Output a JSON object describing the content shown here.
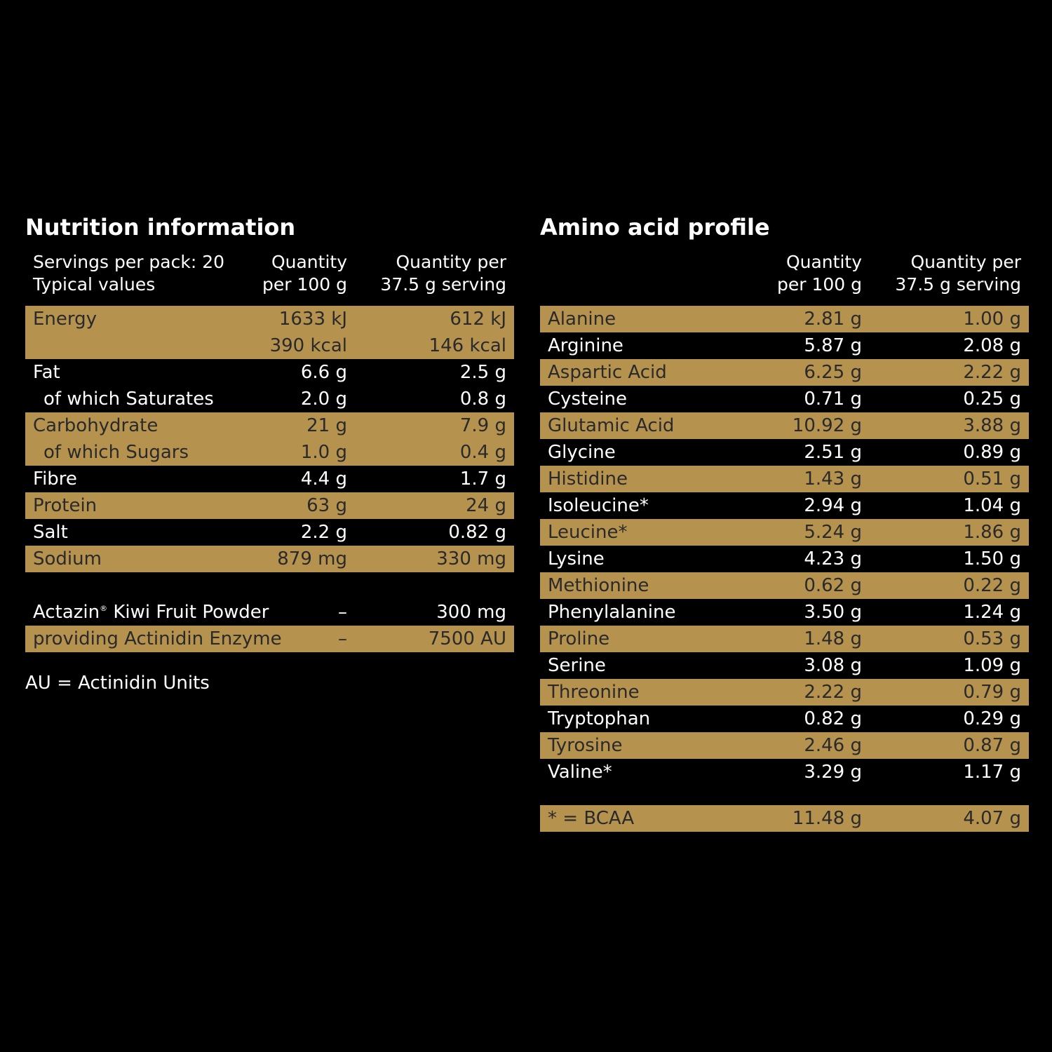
{
  "nutrition": {
    "title": "Nutrition information",
    "header": {
      "col1_line1": "Servings per pack: 20",
      "col1_line2": "Typical values",
      "col2_line1": "Quantity",
      "col2_line2": "per 100 g",
      "col3_line1": "Quantity per",
      "col3_line2": "37.5 g serving"
    },
    "energy": {
      "label": "Energy",
      "per100_kj": "1633 kJ",
      "per100_kcal": "390 kcal",
      "serving_kj": "612 kJ",
      "serving_kcal": "146 kcal"
    },
    "rows": [
      {
        "label": "Fat",
        "per100": "6.6 g",
        "serving": "2.5 g"
      },
      {
        "label": "of which Saturates",
        "per100": "2.0 g",
        "serving": "0.8 g"
      },
      {
        "label": "Carbohydrate",
        "per100": "21 g",
        "serving": "7.9 g"
      },
      {
        "label": "of which Sugars",
        "per100": "1.0 g",
        "serving": "0.4 g"
      },
      {
        "label": "Fibre",
        "per100": "4.4 g",
        "serving": "1.7 g"
      },
      {
        "label": "Protein",
        "per100": "63 g",
        "serving": "24 g"
      },
      {
        "label": "Salt",
        "per100": "2.2 g",
        "serving": "0.82 g"
      },
      {
        "label": "Sodium",
        "per100": "879 mg",
        "serving": "330 mg"
      }
    ],
    "extras": [
      {
        "label": "Actazin",
        "mark": "®",
        "label_rest": " Kiwi Fruit Powder",
        "per100": "–",
        "serving": "300 mg"
      },
      {
        "label": "providing Actinidin Enzyme",
        "per100": "–",
        "serving": "7500 AU"
      }
    ],
    "footnote": "AU = Actinidin Units"
  },
  "amino": {
    "title": "Amino acid profile",
    "header": {
      "col2_line1": "Quantity",
      "col2_line2": "per 100 g",
      "col3_line1": "Quantity per",
      "col3_line2": "37.5 g serving"
    },
    "rows": [
      {
        "label": "Alanine",
        "per100": "2.81 g",
        "serving": "1.00 g"
      },
      {
        "label": "Arginine",
        "per100": "5.87 g",
        "serving": "2.08 g"
      },
      {
        "label": "Aspartic Acid",
        "per100": "6.25 g",
        "serving": "2.22 g"
      },
      {
        "label": "Cysteine",
        "per100": "0.71 g",
        "serving": "0.25 g"
      },
      {
        "label": "Glutamic Acid",
        "per100": "10.92 g",
        "serving": "3.88 g"
      },
      {
        "label": "Glycine",
        "per100": "2.51 g",
        "serving": "0.89 g"
      },
      {
        "label": "Histidine",
        "per100": "1.43 g",
        "serving": "0.51 g"
      },
      {
        "label": "Isoleucine*",
        "per100": "2.94 g",
        "serving": "1.04 g"
      },
      {
        "label": "Leucine*",
        "per100": "5.24 g",
        "serving": "1.86 g"
      },
      {
        "label": "Lysine",
        "per100": "4.23 g",
        "serving": "1.50 g"
      },
      {
        "label": "Methionine",
        "per100": "0.62 g",
        "serving": "0.22 g"
      },
      {
        "label": "Phenylalanine",
        "per100": "3.50 g",
        "serving": "1.24 g"
      },
      {
        "label": "Proline",
        "per100": "1.48 g",
        "serving": "0.53 g"
      },
      {
        "label": "Serine",
        "per100": "3.08 g",
        "serving": "1.09 g"
      },
      {
        "label": "Threonine",
        "per100": "2.22 g",
        "serving": "0.79 g"
      },
      {
        "label": "Tryptophan",
        "per100": "0.82 g",
        "serving": "0.29 g"
      },
      {
        "label": "Tyrosine",
        "per100": "2.46 g",
        "serving": "0.87 g"
      },
      {
        "label": "Valine*",
        "per100": "3.29 g",
        "serving": "1.17 g"
      }
    ],
    "bcaa": {
      "label": "* = BCAA",
      "per100": "11.48 g",
      "serving": "4.07 g"
    }
  },
  "colors": {
    "background": "#000000",
    "gold_band": "#b6924f",
    "band_text": "#2a2a2a",
    "text": "#ffffff"
  }
}
